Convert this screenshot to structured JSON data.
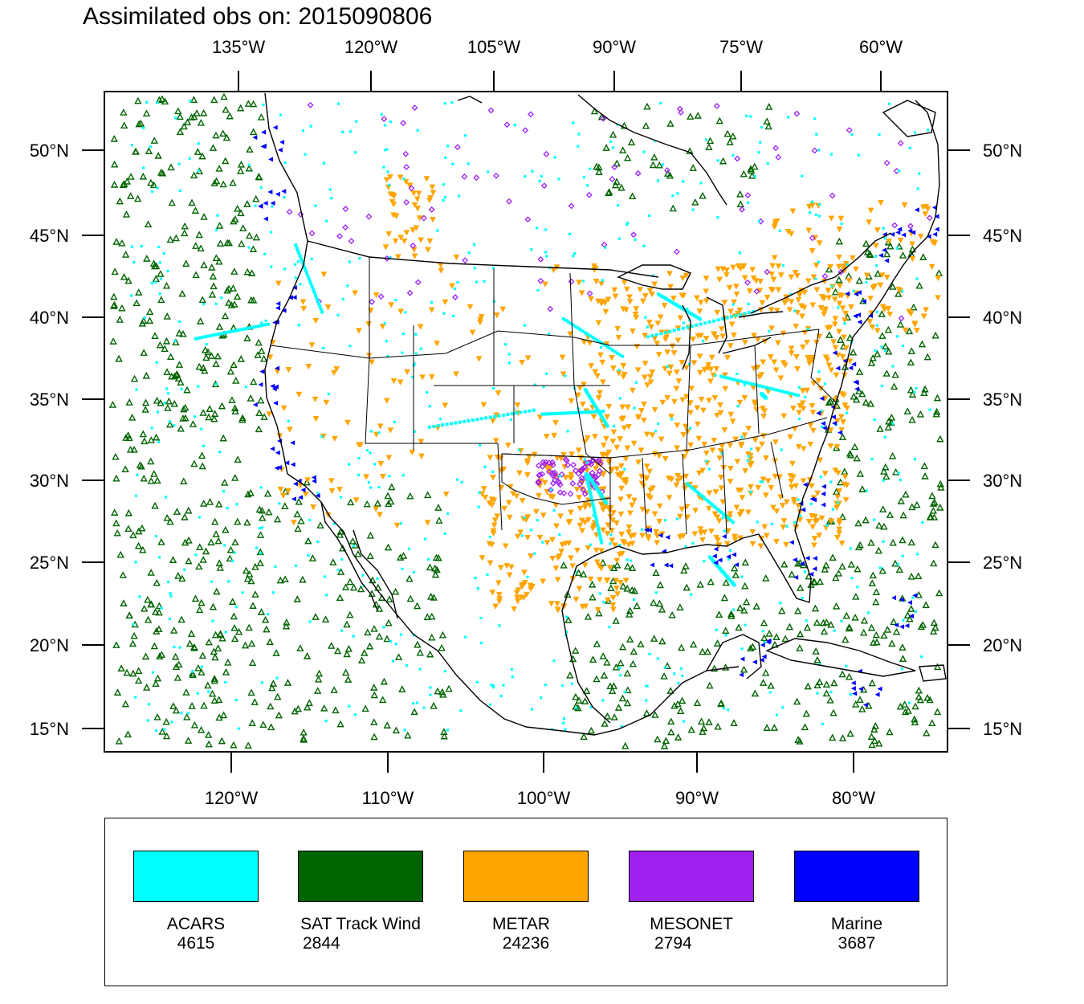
{
  "title": "Assimilated obs on: 2015090806",
  "top_axis": {
    "labels": [
      "135°W",
      "120°W",
      "105°W",
      "90°W",
      "75°W",
      "60°W"
    ]
  },
  "bottom_axis": {
    "labels": [
      "120°W",
      "110°W",
      "100°W",
      "90°W",
      "80°W"
    ]
  },
  "left_axis": {
    "labels": [
      "50°N",
      "45°N",
      "40°N",
      "35°N",
      "30°N",
      "25°N",
      "20°N",
      "15°N"
    ]
  },
  "right_axis": {
    "labels": [
      "50°N",
      "45°N",
      "40°N",
      "35°N",
      "30°N",
      "25°N",
      "20°N",
      "15°N"
    ]
  },
  "legend": [
    {
      "name": "ACARS",
      "count": "4615",
      "color": "#00ffff"
    },
    {
      "name": "SAT Track Wind",
      "count": "2844",
      "color": "#006400"
    },
    {
      "name": "METAR",
      "count": "24236",
      "color": "#ffa500"
    },
    {
      "name": "MESONET",
      "count": "2794",
      "color": "#a020f0"
    },
    {
      "name": "Marine",
      "count": "3687",
      "color": "#0000ff"
    }
  ],
  "colors": {
    "acars": "#00ffff",
    "sat": "#006400",
    "metar": "#ffa500",
    "mesonet": "#a020f0",
    "marine": "#0000ff",
    "frame": "#000000"
  }
}
